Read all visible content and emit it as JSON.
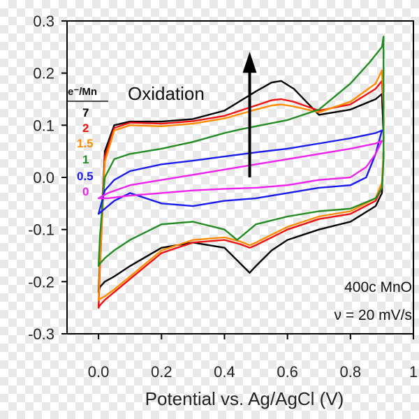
{
  "chart_data": {
    "type": "line",
    "xlabel": "Potential vs. Ag/AgCl (V)",
    "xlim": [
      -0.1,
      1.0
    ],
    "ylim": [
      -0.3,
      0.3
    ],
    "xticks": [
      {
        "value": 0.0,
        "label": "0.0"
      },
      {
        "value": 0.2,
        "label": "0.2"
      },
      {
        "value": 0.4,
        "label": "0.4"
      },
      {
        "value": 0.6,
        "label": "0.6"
      },
      {
        "value": 0.8,
        "label": "0.8"
      },
      {
        "value": 1.0,
        "label": "1"
      }
    ],
    "yticks": [
      {
        "value": 0.3,
        "label": "0.3"
      },
      {
        "value": 0.2,
        "label": "0.2"
      },
      {
        "value": 0.1,
        "label": "0.1"
      },
      {
        "value": 0.0,
        "label": "0.0"
      },
      {
        "value": -0.1,
        "label": "-0.1"
      },
      {
        "value": -0.2,
        "label": "-0.2"
      },
      {
        "value": -0.3,
        "label": "-0.3"
      }
    ],
    "legend": {
      "title": "e⁻/Mn",
      "placement": "upper-left"
    },
    "annotations": {
      "arrow_text": "Oxidation",
      "arrow_from": [
        0.48,
        0.0
      ],
      "arrow_to": [
        0.48,
        0.23
      ],
      "sample": "400c MnO",
      "scan_rate": "ν = 20 mV/s"
    },
    "series": [
      {
        "name": "7",
        "color": "#000000",
        "x": [
          0.0,
          0.005,
          0.02,
          0.05,
          0.1,
          0.2,
          0.3,
          0.4,
          0.5,
          0.55,
          0.58,
          0.62,
          0.7,
          0.8,
          0.88,
          0.9,
          0.905,
          0.905,
          0.9,
          0.88,
          0.8,
          0.7,
          0.6,
          0.55,
          0.5,
          0.48,
          0.45,
          0.4,
          0.3,
          0.2,
          0.1,
          0.05,
          0.02,
          0.005,
          0.0
        ],
        "y": [
          -0.22,
          -0.15,
          0.05,
          0.1,
          0.107,
          0.107,
          0.112,
          0.128,
          0.165,
          0.182,
          0.185,
          0.17,
          0.12,
          0.13,
          0.15,
          0.16,
          0.08,
          0.05,
          -0.03,
          -0.055,
          -0.085,
          -0.1,
          -0.12,
          -0.14,
          -0.17,
          -0.183,
          -0.165,
          -0.135,
          -0.125,
          -0.135,
          -0.17,
          -0.19,
          -0.2,
          -0.21,
          -0.22
        ]
      },
      {
        "name": "2",
        "color": "#ee1111",
        "x": [
          0.0,
          0.005,
          0.02,
          0.05,
          0.1,
          0.2,
          0.3,
          0.4,
          0.5,
          0.55,
          0.58,
          0.62,
          0.7,
          0.8,
          0.88,
          0.9,
          0.905,
          0.905,
          0.9,
          0.88,
          0.8,
          0.7,
          0.6,
          0.55,
          0.5,
          0.48,
          0.45,
          0.4,
          0.3,
          0.2,
          0.1,
          0.05,
          0.02,
          0.005,
          0.0
        ],
        "y": [
          -0.25,
          -0.17,
          0.04,
          0.095,
          0.105,
          0.103,
          0.108,
          0.118,
          0.138,
          0.148,
          0.15,
          0.145,
          0.128,
          0.14,
          0.17,
          0.185,
          0.13,
          0.05,
          -0.02,
          -0.045,
          -0.07,
          -0.08,
          -0.1,
          -0.115,
          -0.13,
          -0.135,
          -0.128,
          -0.12,
          -0.125,
          -0.145,
          -0.195,
          -0.22,
          -0.235,
          -0.245,
          -0.25
        ]
      },
      {
        "name": "1.5",
        "color": "#ff8c00",
        "x": [
          0.0,
          0.005,
          0.02,
          0.05,
          0.1,
          0.2,
          0.3,
          0.4,
          0.5,
          0.55,
          0.58,
          0.62,
          0.7,
          0.8,
          0.88,
          0.9,
          0.905,
          0.905,
          0.9,
          0.88,
          0.8,
          0.7,
          0.6,
          0.55,
          0.5,
          0.48,
          0.45,
          0.4,
          0.3,
          0.2,
          0.1,
          0.05,
          0.02,
          0.005,
          0.0
        ],
        "y": [
          -0.235,
          -0.16,
          0.03,
          0.09,
          0.1,
          0.098,
          0.103,
          0.113,
          0.13,
          0.138,
          0.14,
          0.136,
          0.125,
          0.145,
          0.18,
          0.205,
          0.14,
          0.05,
          -0.01,
          -0.04,
          -0.065,
          -0.075,
          -0.095,
          -0.11,
          -0.125,
          -0.13,
          -0.123,
          -0.115,
          -0.12,
          -0.14,
          -0.19,
          -0.215,
          -0.228,
          -0.233,
          -0.235
        ]
      },
      {
        "name": "1",
        "color": "#228b22",
        "x": [
          0.0,
          0.005,
          0.02,
          0.05,
          0.1,
          0.2,
          0.3,
          0.4,
          0.45,
          0.5,
          0.6,
          0.7,
          0.8,
          0.86,
          0.9,
          0.905,
          0.905,
          0.9,
          0.88,
          0.8,
          0.7,
          0.6,
          0.5,
          0.47,
          0.45,
          0.44,
          0.4,
          0.3,
          0.2,
          0.1,
          0.05,
          0.02,
          0.005,
          0.0
        ],
        "y": [
          -0.17,
          -0.11,
          0.0,
          0.035,
          0.045,
          0.055,
          0.068,
          0.085,
          0.092,
          0.098,
          0.11,
          0.13,
          0.18,
          0.22,
          0.25,
          0.27,
          0.03,
          -0.02,
          -0.04,
          -0.06,
          -0.065,
          -0.075,
          -0.09,
          -0.105,
          -0.115,
          -0.12,
          -0.1,
          -0.085,
          -0.09,
          -0.12,
          -0.14,
          -0.155,
          -0.165,
          -0.17
        ]
      },
      {
        "name": "0.5",
        "color": "#1a1aee",
        "x": [
          0.0,
          0.02,
          0.05,
          0.1,
          0.2,
          0.3,
          0.4,
          0.5,
          0.6,
          0.7,
          0.8,
          0.88,
          0.9,
          0.88,
          0.85,
          0.8,
          0.7,
          0.6,
          0.5,
          0.4,
          0.3,
          0.2,
          0.1,
          0.05,
          0.02,
          0.0
        ],
        "y": [
          -0.07,
          -0.025,
          -0.005,
          0.012,
          0.025,
          0.032,
          0.04,
          0.048,
          0.055,
          0.065,
          0.075,
          0.085,
          0.09,
          0.045,
          0.0,
          -0.015,
          -0.02,
          -0.03,
          -0.04,
          -0.045,
          -0.055,
          -0.05,
          -0.03,
          -0.045,
          -0.06,
          -0.07
        ]
      },
      {
        "name": "0",
        "color": "#ee22ee",
        "x": [
          0.0,
          0.03,
          0.1,
          0.2,
          0.3,
          0.4,
          0.5,
          0.6,
          0.7,
          0.8,
          0.88,
          0.9,
          0.88,
          0.85,
          0.8,
          0.7,
          0.6,
          0.5,
          0.4,
          0.3,
          0.2,
          0.1,
          0.03,
          0.0
        ],
        "y": [
          -0.04,
          -0.03,
          -0.015,
          -0.005,
          0.005,
          0.015,
          0.025,
          0.035,
          0.045,
          0.055,
          0.065,
          0.07,
          0.045,
          0.02,
          0.0,
          -0.005,
          -0.015,
          -0.02,
          -0.022,
          -0.025,
          -0.03,
          -0.035,
          -0.04,
          -0.04
        ]
      }
    ]
  }
}
